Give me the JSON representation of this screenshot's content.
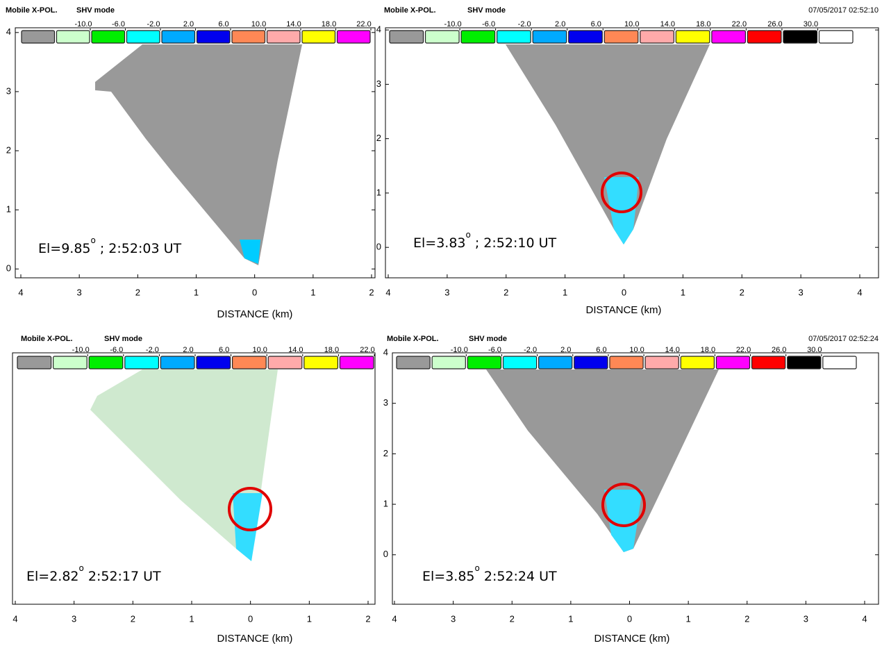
{
  "chart_data": [
    {
      "type": "ppi",
      "title": "Mobile X-POL.",
      "subtitle": "SHV mode",
      "colorbar": {
        "colors": [
          "#999999",
          "#ccffcc",
          "#00ee00",
          "#00ffff",
          "#00aaff",
          "#0000ee",
          "#ff8855",
          "#ffaaaa",
          "#ffff00",
          "#ff00ff"
        ],
        "ticks": [
          {
            "value": -10,
            "label": "-10.0"
          },
          {
            "value": -6,
            "label": "-6.0"
          },
          {
            "value": -2,
            "label": "-2.0"
          },
          {
            "value": 2,
            "label": "2.0"
          },
          {
            "value": 6,
            "label": "6.0"
          },
          {
            "value": 10,
            "label": "10.0"
          },
          {
            "value": 14,
            "label": "14.0"
          },
          {
            "value": 18,
            "label": "18.0"
          },
          {
            "value": 22,
            "label": "22.0"
          }
        ]
      },
      "annotation": {
        "elevation": "El=9.85",
        "degree": "o",
        "time": "; 2:52:03 UT"
      },
      "xlabel": "DISTANCE (km)",
      "xlim": [
        -4,
        2
      ],
      "xticks": [
        {
          "value": -4,
          "label": "4"
        },
        {
          "value": -3,
          "label": "3"
        },
        {
          "value": -2,
          "label": "2"
        },
        {
          "value": -1,
          "label": "1"
        },
        0,
        1,
        2
      ],
      "ylim": [
        -0.15,
        4.08
      ],
      "yticks": [
        0,
        1,
        2,
        3,
        4
      ]
    },
    {
      "type": "ppi",
      "title": "Mobile X-POL.",
      "subtitle": "SHV mode",
      "timestamp": "07/05/2017 02:52:10",
      "colorbar": {
        "colors": [
          "#999999",
          "#ccffcc",
          "#00ee00",
          "#00ffff",
          "#00aaff",
          "#0000ee",
          "#ff8855",
          "#ffaaaa",
          "#ffff00",
          "#ff00ff",
          "#ff0000",
          "#000000",
          "#ffffff"
        ],
        "ticks": [
          {
            "value": -10,
            "label": "-10.0"
          },
          {
            "value": -6,
            "label": "-6.0"
          },
          {
            "value": -2,
            "label": "-2.0"
          },
          {
            "value": 2,
            "label": "2.0"
          },
          {
            "value": 6,
            "label": "6.0"
          },
          {
            "value": 10,
            "label": "10.0"
          },
          {
            "value": 14,
            "label": "14.0"
          },
          {
            "value": 18,
            "label": "18.0"
          },
          {
            "value": 22,
            "label": "22.0"
          },
          {
            "value": 26,
            "label": "26.0"
          },
          {
            "value": 30,
            "label": "30.0"
          }
        ]
      },
      "annotation": {
        "elevation": "El=3.83",
        "degree": "o",
        "time": "; 2:52:10 UT"
      },
      "xlabel": "DISTANCE (km)",
      "xlim": [
        -4,
        4
      ],
      "xticks": [
        {
          "value": -4,
          "label": "4"
        },
        {
          "value": -3,
          "label": "3"
        },
        {
          "value": -2,
          "label": "2"
        },
        {
          "value": -1,
          "label": "1"
        },
        0,
        1,
        2,
        3,
        4
      ],
      "ylim": [
        -0.56,
        4.04
      ],
      "yticks": [
        0,
        1,
        2,
        3,
        4
      ]
    },
    {
      "type": "ppi",
      "title": "Mobile X-POL.",
      "subtitle": "SHV mode",
      "colorbar": {
        "colors": [
          "#999999",
          "#ccffcc",
          "#00ee00",
          "#00ffff",
          "#00aaff",
          "#0000ee",
          "#ff8855",
          "#ffaaaa",
          "#ffff00",
          "#ff00ff"
        ],
        "ticks": [
          {
            "value": -10,
            "label": "-10.0"
          },
          {
            "value": -6,
            "label": "-6.0"
          },
          {
            "value": -2,
            "label": "-2.0"
          },
          {
            "value": 2,
            "label": "2.0"
          },
          {
            "value": 6,
            "label": "6.0"
          },
          {
            "value": 10,
            "label": "10.0"
          },
          {
            "value": 14,
            "label": "14.0"
          },
          {
            "value": 18,
            "label": "18.0"
          },
          {
            "value": 22,
            "label": "22.0"
          }
        ]
      },
      "annotation": {
        "elevation": "El=2.82",
        "degree": "o",
        "time": "2:52:17 UT"
      },
      "xlabel": "DISTANCE (km)",
      "xlim": [
        -4,
        2
      ],
      "xticks": [
        {
          "value": -4,
          "label": "4"
        },
        {
          "value": -3,
          "label": "3"
        },
        {
          "value": -2,
          "label": "2"
        },
        {
          "value": -1,
          "label": "1"
        },
        0,
        1,
        2
      ]
    },
    {
      "type": "ppi",
      "title": "Mobile X-POL.",
      "subtitle": "SHV mode",
      "timestamp": "07/05/2017 02:52:24",
      "colorbar": {
        "colors": [
          "#999999",
          "#ccffcc",
          "#00ee00",
          "#00ffff",
          "#00aaff",
          "#0000ee",
          "#ff8855",
          "#ffaaaa",
          "#ffff00",
          "#ff00ff",
          "#ff0000",
          "#000000",
          "#ffffff"
        ],
        "ticks": [
          {
            "value": -10,
            "label": "-10.0"
          },
          {
            "value": -6,
            "label": "-6.0"
          },
          {
            "value": -2,
            "label": "-2.0"
          },
          {
            "value": 2,
            "label": "2.0"
          },
          {
            "value": 6,
            "label": "6.0"
          },
          {
            "value": 10,
            "label": "10.0"
          },
          {
            "value": 14,
            "label": "14.0"
          },
          {
            "value": 18,
            "label": "18.0"
          },
          {
            "value": 22,
            "label": "22.0"
          },
          {
            "value": 26,
            "label": "26.0"
          },
          {
            "value": 30,
            "label": "30.0"
          }
        ]
      },
      "annotation": {
        "elevation": "El=3.85",
        "degree": "o",
        "time": "2:52:24 UT"
      },
      "xlabel": "DISTANCE (km)",
      "xlim": [
        -4,
        4
      ],
      "xticks": [
        {
          "value": -4,
          "label": "4"
        },
        {
          "value": -3,
          "label": "3"
        },
        {
          "value": -2,
          "label": "2"
        },
        {
          "value": -1,
          "label": "1"
        },
        0,
        1,
        2,
        3,
        4
      ],
      "ylim": [
        -0.98,
        4.0
      ],
      "yticks": [
        0,
        1,
        2,
        3,
        4
      ]
    }
  ]
}
